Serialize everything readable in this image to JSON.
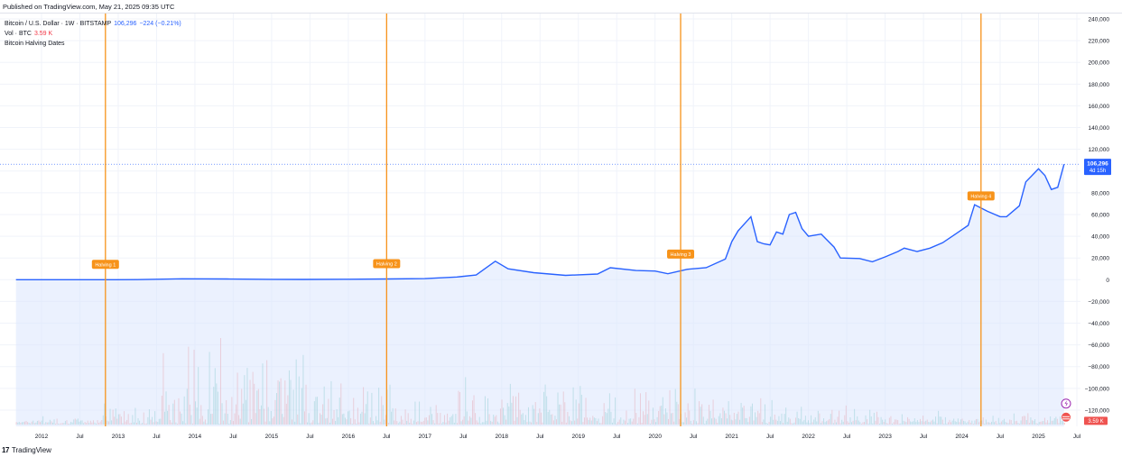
{
  "published": "Published on TradingView.com, May 21, 2025 09:35 UTC",
  "legend": {
    "symbol": "Bitcoin / U.S. Dollar · 1W · BITSTAMP",
    "last_price": "106,296",
    "change": "−224 (−0.21%)",
    "vol_label": "Vol · BTC",
    "vol_value": "3.59 K",
    "indicator": "Bitcoin Halving Dates"
  },
  "footer": {
    "logo": "17",
    "brand": "TradingView"
  },
  "colors": {
    "price_line": "#2962ff",
    "area_fill": "#dbe6fd",
    "halving": "#f7931a",
    "vol_up": "#26a69a",
    "vol_down": "#ef5350",
    "grid": "#f0f3fa",
    "badge": "#2962ff"
  },
  "chart_data": {
    "type": "area",
    "series": [
      {
        "x": [
          "2011-09",
          "2012-01",
          "2012-06",
          "2012-11",
          "2013-04",
          "2013-11",
          "2014-06",
          "2015-01",
          "2015-06",
          "2016-01",
          "2016-07",
          "2017-01",
          "2017-06",
          "2017-09",
          "2017-12",
          "2018-02",
          "2018-06",
          "2018-11",
          "2019-04",
          "2019-06",
          "2019-10",
          "2020-01",
          "2020-03",
          "2020-06",
          "2020-09",
          "2020-12",
          "2021-01",
          "2021-02",
          "2021-04",
          "2021-05",
          "2021-06",
          "2021-07",
          "2021-08",
          "2021-09",
          "2021-10",
          "2021-11",
          "2021-12",
          "2022-01",
          "2022-03",
          "2022-05",
          "2022-06",
          "2022-09",
          "2022-11",
          "2023-01",
          "2023-03",
          "2023-04",
          "2023-06",
          "2023-08",
          "2023-10",
          "2023-12",
          "2024-02",
          "2024-03",
          "2024-05",
          "2024-07",
          "2024-08",
          "2024-10",
          "2024-11",
          "2024-12",
          "2025-01",
          "2025-02",
          "2025-03",
          "2025-04",
          "2025-05"
        ],
        "values": [
          5,
          6,
          6,
          12,
          120,
          800,
          650,
          300,
          240,
          430,
          650,
          1000,
          2500,
          4300,
          17000,
          10000,
          6500,
          4000,
          5200,
          11000,
          8500,
          8000,
          5500,
          9500,
          11000,
          19000,
          35000,
          45000,
          58000,
          35000,
          33000,
          32000,
          44000,
          42000,
          60000,
          62000,
          47000,
          40000,
          42000,
          30000,
          20000,
          19500,
          16500,
          21000,
          26000,
          29000,
          26000,
          29000,
          34000,
          42000,
          50000,
          69000,
          63000,
          58000,
          58000,
          68000,
          90000,
          96000,
          102000,
          96000,
          83000,
          85000,
          106296
        ]
      }
    ],
    "ylim": [
      -130000,
      240000
    ],
    "yticks": [
      "240,000",
      "220,000",
      "200,000",
      "180,000",
      "160,000",
      "140,000",
      "120,000",
      "100,000",
      "80,000",
      "60,000",
      "40,000",
      "20,000",
      "0",
      "−20,000",
      "−40,000",
      "−60,000",
      "−80,000",
      "−100,000",
      "−120,000"
    ],
    "ytick_values": [
      240000,
      220000,
      200000,
      180000,
      160000,
      140000,
      120000,
      100000,
      80000,
      60000,
      40000,
      20000,
      0,
      -20000,
      -40000,
      -60000,
      -80000,
      -100000,
      -120000
    ],
    "xticks": [
      "2012",
      "Jul",
      "2013",
      "Jul",
      "2014",
      "Jul",
      "2015",
      "Jul",
      "2016",
      "Jul",
      "2017",
      "Jul",
      "2018",
      "Jul",
      "2019",
      "Jul",
      "2020",
      "Jul",
      "2021",
      "Jul",
      "2022",
      "Jul",
      "2023",
      "Jul",
      "2024",
      "Jul",
      "2025",
      "Jul"
    ],
    "xtick_dates": [
      "2012-01",
      "2012-07",
      "2013-01",
      "2013-07",
      "2014-01",
      "2014-07",
      "2015-01",
      "2015-07",
      "2016-01",
      "2016-07",
      "2017-01",
      "2017-07",
      "2018-01",
      "2018-07",
      "2019-01",
      "2019-07",
      "2020-01",
      "2020-07",
      "2021-01",
      "2021-07",
      "2022-01",
      "2022-07",
      "2023-01",
      "2023-07",
      "2024-01",
      "2024-07",
      "2025-01",
      "2025-07"
    ],
    "halvings": [
      {
        "label": "Halving 1",
        "date": "2012-11"
      },
      {
        "label": "Halving 2",
        "date": "2016-07"
      },
      {
        "label": "Halving 3",
        "date": "2020-05"
      },
      {
        "label": "Halving 4",
        "date": "2024-04"
      }
    ],
    "last_price_label": "106,296",
    "countdown_label": "4d 15h",
    "volume_last_label": "3.59 K",
    "grid": true
  }
}
